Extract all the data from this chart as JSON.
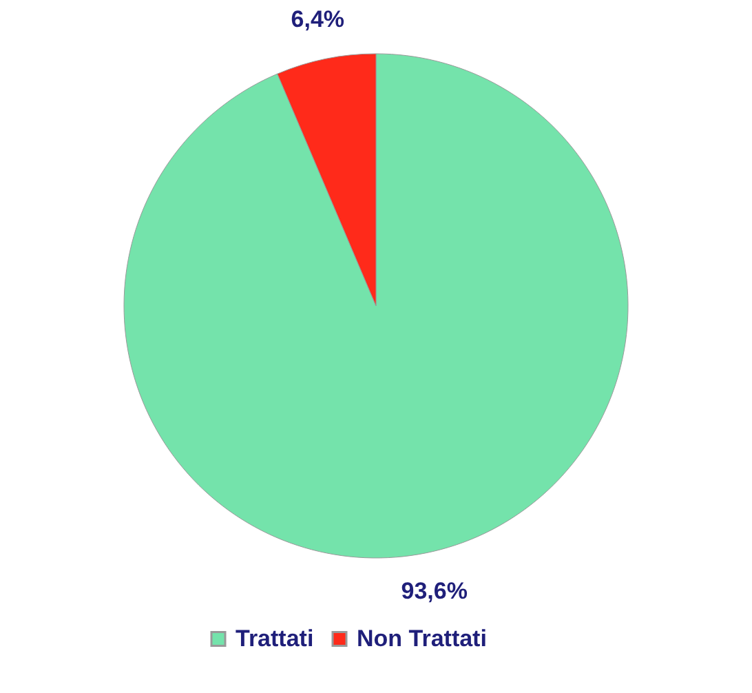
{
  "chart_data": {
    "type": "pie",
    "categories": [
      "Trattati",
      "Non Trattati"
    ],
    "values": [
      93.6,
      6.4
    ],
    "colors": [
      "#74e3ab",
      "#ff2a1a"
    ],
    "value_labels": [
      "93,6%",
      "6,4%"
    ],
    "legend": "bottom"
  }
}
